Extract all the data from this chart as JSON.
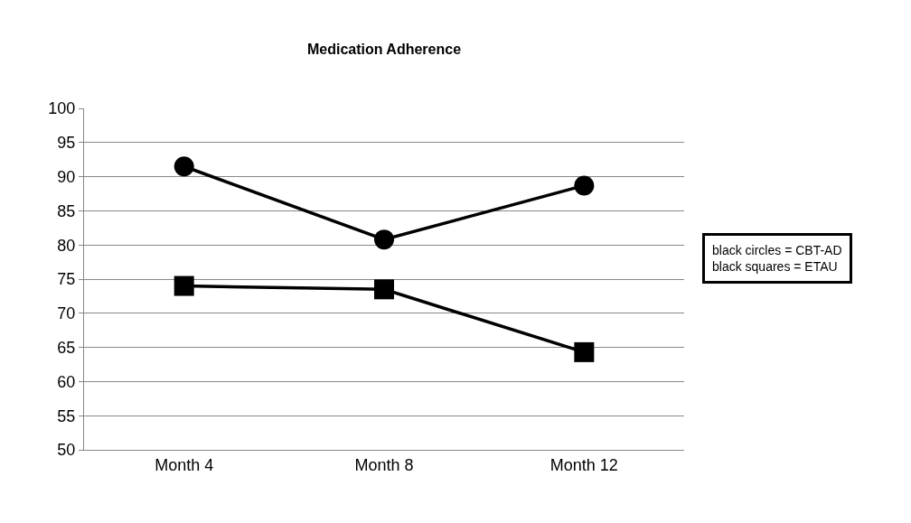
{
  "chart_data": {
    "type": "line",
    "title": "Medication Adherence",
    "categories": [
      "Month 4",
      "Month 8",
      "Month 12"
    ],
    "series": [
      {
        "color": "#000000",
        "marker": "circle",
        "values": [
          91.5,
          80.8,
          88.7
        ]
      },
      {
        "color": "#000000",
        "marker": "square",
        "values": [
          74.0,
          73.5,
          64.3
        ]
      }
    ],
    "ylim": [
      50,
      100
    ],
    "yticks": [
      50,
      55,
      60,
      65,
      70,
      75,
      80,
      85,
      90,
      95,
      100
    ],
    "grid": "y",
    "line_style": "solid",
    "annotations": [
      "black circles = CBT-AD\nblack squares = ETAU"
    ]
  }
}
